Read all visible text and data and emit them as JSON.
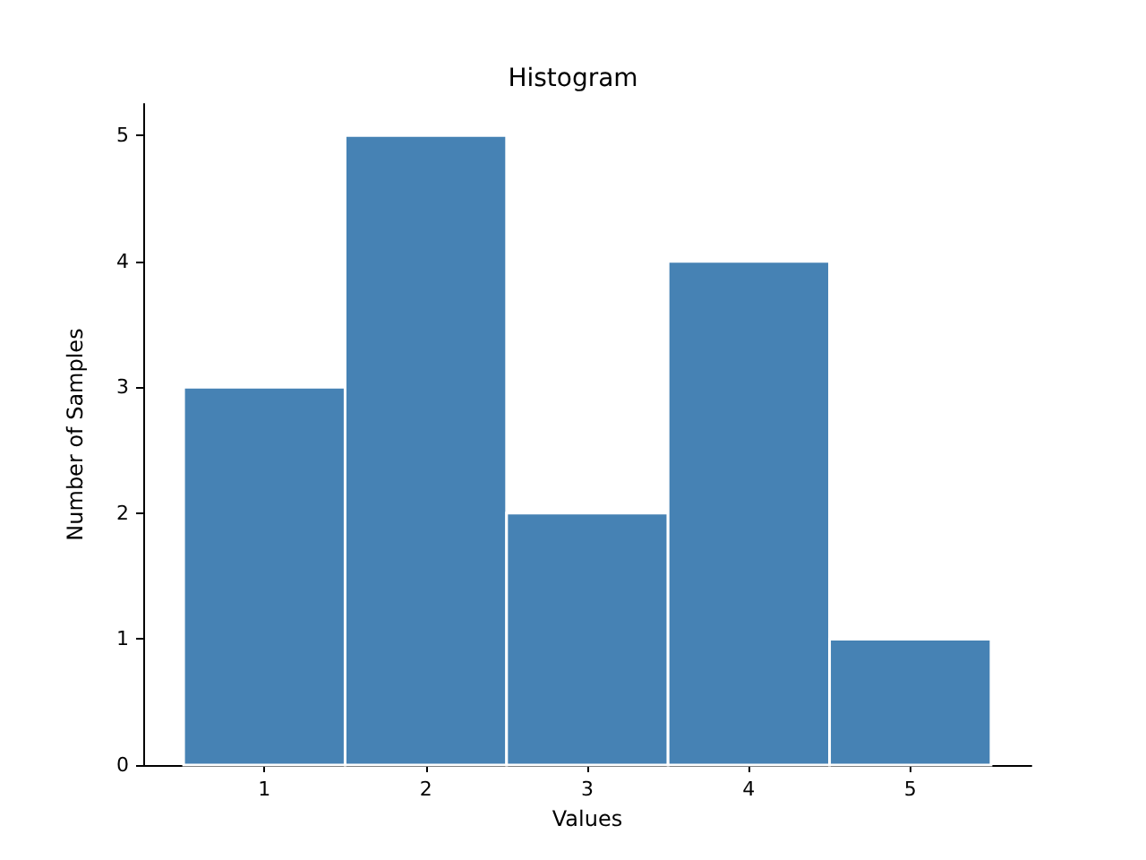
{
  "chart_data": {
    "type": "histogram",
    "title": "Histogram",
    "xlabel": "Values",
    "ylabel": "Number of Samples",
    "bins": [
      0.5,
      1.5,
      2.5,
      3.5,
      4.5,
      5.5
    ],
    "values": [
      3,
      5,
      2,
      4,
      1
    ],
    "color": "#4682b4",
    "xlim": [
      0.25,
      5.75
    ],
    "xticks": [
      1,
      2,
      3,
      4,
      5
    ],
    "ylim": [
      0,
      5.25
    ],
    "yticks": [
      0,
      1,
      2,
      3,
      4,
      5
    ],
    "grid": false
  }
}
